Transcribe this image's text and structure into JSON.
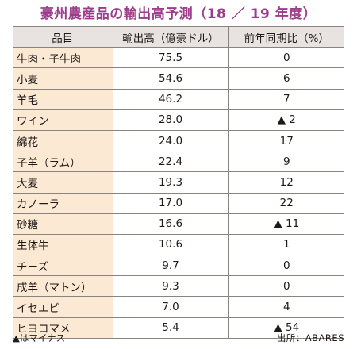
{
  "title": "豪州農産品の輸出高予測（18 ／ 19 年度）",
  "colors": {
    "title": "#9c3d8b",
    "header_bg": "#e8e2e0",
    "item_bg": "#fce9d4",
    "cell_bg": "#ffffff",
    "rule": "#8a8480"
  },
  "table": {
    "headers": [
      "品目",
      "輸出高（億豪ドル）",
      "前年同期比（%）"
    ],
    "rows": [
      {
        "item": "牛肉・子牛肉",
        "value": "75.5",
        "change": "0"
      },
      {
        "item": "小麦",
        "value": "54.6",
        "change": "6"
      },
      {
        "item": "羊毛",
        "value": "46.2",
        "change": "7"
      },
      {
        "item": "ワイン",
        "value": "28.0",
        "change": "▲ 2"
      },
      {
        "item": "綿花",
        "value": "24.0",
        "change": "17"
      },
      {
        "item": "子羊（ラム）",
        "value": "22.4",
        "change": "9"
      },
      {
        "item": "大麦",
        "value": "19.3",
        "change": "12"
      },
      {
        "item": "カノーラ",
        "value": "17.0",
        "change": "22"
      },
      {
        "item": "砂糖",
        "value": "16.6",
        "change": "▲ 11"
      },
      {
        "item": "生体牛",
        "value": "10.6",
        "change": "1"
      },
      {
        "item": "チーズ",
        "value": "9.7",
        "change": "0"
      },
      {
        "item": "成羊（マトン）",
        "value": "9.3",
        "change": "0"
      },
      {
        "item": "イセエビ",
        "value": "7.0",
        "change": "4"
      },
      {
        "item": "ヒヨコマメ",
        "value": "5.4",
        "change": "▲ 54"
      }
    ]
  },
  "footer": {
    "note": "▲はマイナス",
    "source": "出所：ABARES"
  }
}
